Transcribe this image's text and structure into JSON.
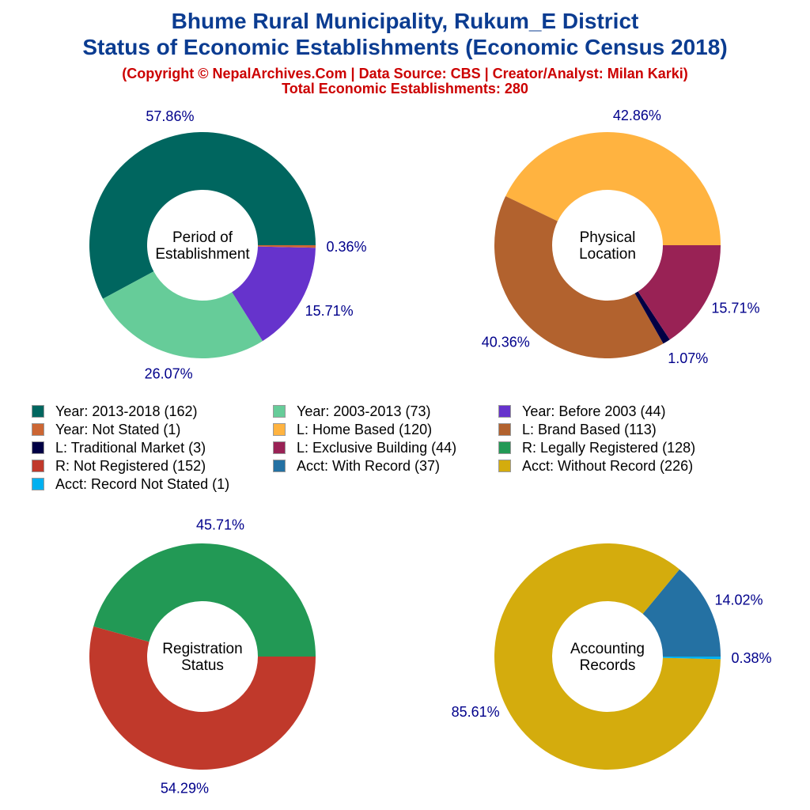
{
  "title": {
    "line1": "Bhume Rural Municipality, Rukum_E District",
    "line2": "Status of Economic Establishments (Economic Census 2018)",
    "line3": "(Copyright © NepalArchives.Com | Data Source: CBS | Creator/Analyst: Milan Karki)",
    "line4": "Total Economic Establishments: 280"
  },
  "chart_data": [
    {
      "type": "pie",
      "donut": true,
      "title": "Period of Establishment",
      "start": "3 o'clock, counterclockwise",
      "slices": [
        {
          "name": "Year: 2013-2018",
          "value": 162,
          "percent": "57.86%",
          "color": "#00665f"
        },
        {
          "name": "Year: 2003-2013",
          "value": 73,
          "percent": "26.07%",
          "color": "#66cc99"
        },
        {
          "name": "Year: Before 2003",
          "value": 44,
          "percent": "15.71%",
          "color": "#6633cc"
        },
        {
          "name": "Year: Not Stated",
          "value": 1,
          "percent": "0.36%",
          "color": "#cc6633"
        }
      ]
    },
    {
      "type": "pie",
      "donut": true,
      "title": "Physical Location",
      "start": "3 o'clock, counterclockwise",
      "slices": [
        {
          "name": "L: Home Based",
          "value": 120,
          "percent": "42.86%",
          "color": "#ffb340"
        },
        {
          "name": "L: Brand Based",
          "value": 113,
          "percent": "40.36%",
          "color": "#b2622e"
        },
        {
          "name": "L: Traditional Market",
          "value": 3,
          "percent": "1.07%",
          "color": "#000044"
        },
        {
          "name": "L: Exclusive Building",
          "value": 44,
          "percent": "15.71%",
          "color": "#992255"
        }
      ]
    },
    {
      "type": "pie",
      "donut": true,
      "title": "Registration Status",
      "start": "3 o'clock, counterclockwise",
      "slices": [
        {
          "name": "R: Legally Registered",
          "value": 128,
          "percent": "45.71%",
          "color": "#229955"
        },
        {
          "name": "R: Not Registered",
          "value": 152,
          "percent": "54.29%",
          "color": "#c0392b"
        }
      ]
    },
    {
      "type": "pie",
      "donut": true,
      "title": "Accounting Records",
      "start": "3 o'clock, counterclockwise",
      "slices": [
        {
          "name": "Acct: With Record",
          "value": 37,
          "percent": "14.02%",
          "color": "#2471a3"
        },
        {
          "name": "Acct: Without Record",
          "value": 226,
          "percent": "85.61%",
          "color": "#d4ac0d"
        },
        {
          "name": "Acct: Record Not Stated",
          "value": 1,
          "percent": "0.38%",
          "color": "#00b0f0"
        }
      ]
    }
  ],
  "legend": [
    {
      "label": "Year: 2013-2018 (162)",
      "color": "#00665f"
    },
    {
      "label": "Year: 2003-2013 (73)",
      "color": "#66cc99"
    },
    {
      "label": "Year: Before 2003 (44)",
      "color": "#6633cc"
    },
    {
      "label": "Year: Not Stated (1)",
      "color": "#cc6633"
    },
    {
      "label": "L: Home Based (120)",
      "color": "#ffb340"
    },
    {
      "label": "L: Brand Based (113)",
      "color": "#b2622e"
    },
    {
      "label": "L: Traditional Market (3)",
      "color": "#000044"
    },
    {
      "label": "L: Exclusive Building (44)",
      "color": "#992255"
    },
    {
      "label": "R: Legally Registered (128)",
      "color": "#229955"
    },
    {
      "label": "R: Not Registered (152)",
      "color": "#c0392b"
    },
    {
      "label": "Acct: With Record (37)",
      "color": "#2471a3"
    },
    {
      "label": "Acct: Without Record (226)",
      "color": "#d4ac0d"
    },
    {
      "label": "Acct: Record Not Stated (1)",
      "color": "#00b0f0"
    }
  ],
  "center_labels": [
    [
      "Period of",
      "Establishment"
    ],
    [
      "Physical",
      "Location"
    ],
    [
      "Registration",
      "Status"
    ],
    [
      "Accounting",
      "Records"
    ]
  ],
  "label_color": "#00008b"
}
